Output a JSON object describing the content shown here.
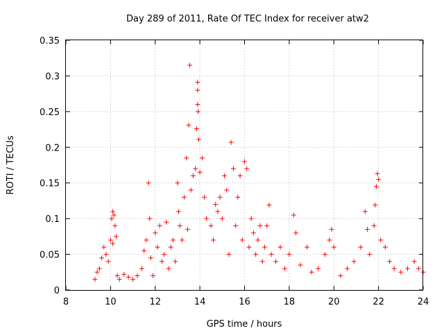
{
  "chart_data": {
    "type": "scatter",
    "title": "Day 289 of 2011, Rate Of TEC Index for receiver atw2",
    "xlabel": "GPS time / hours",
    "ylabel": "ROTI / TECUs",
    "xlim": [
      8,
      24
    ],
    "ylim": [
      0,
      0.35
    ],
    "xticks": [
      "8",
      "10",
      "12",
      "14",
      "16",
      "18",
      "20",
      "22",
      "24"
    ],
    "yticks": [
      "0",
      "0.05",
      "0.1",
      "0.15",
      "0.2",
      "0.25",
      "0.3",
      "0.35"
    ],
    "grid": true,
    "marker": "+",
    "color": "#ff0000",
    "series": [
      {
        "name": "ROTI",
        "points": [
          [
            9.3,
            0.015
          ],
          [
            9.4,
            0.025
          ],
          [
            9.5,
            0.03
          ],
          [
            9.6,
            0.045
          ],
          [
            9.7,
            0.06
          ],
          [
            9.8,
            0.05
          ],
          [
            9.9,
            0.04
          ],
          [
            10.0,
            0.07
          ],
          [
            10.05,
            0.1
          ],
          [
            10.1,
            0.11
          ],
          [
            10.15,
            0.105
          ],
          [
            10.2,
            0.09
          ],
          [
            10.25,
            0.075
          ],
          [
            10.1,
            0.065
          ],
          [
            10.3,
            0.02
          ],
          [
            10.4,
            0.015
          ],
          [
            10.6,
            0.022
          ],
          [
            10.8,
            0.018
          ],
          [
            11.0,
            0.015
          ],
          [
            11.2,
            0.02
          ],
          [
            11.4,
            0.03
          ],
          [
            11.5,
            0.055
          ],
          [
            11.6,
            0.07
          ],
          [
            11.7,
            0.15
          ],
          [
            11.75,
            0.1
          ],
          [
            11.8,
            0.045
          ],
          [
            11.9,
            0.02
          ],
          [
            12.0,
            0.08
          ],
          [
            12.1,
            0.06
          ],
          [
            12.2,
            0.09
          ],
          [
            12.3,
            0.04
          ],
          [
            12.4,
            0.05
          ],
          [
            12.5,
            0.095
          ],
          [
            12.6,
            0.03
          ],
          [
            12.7,
            0.06
          ],
          [
            12.8,
            0.07
          ],
          [
            12.9,
            0.04
          ],
          [
            13.0,
            0.15
          ],
          [
            13.05,
            0.11
          ],
          [
            13.1,
            0.09
          ],
          [
            13.2,
            0.07
          ],
          [
            13.3,
            0.13
          ],
          [
            13.4,
            0.185
          ],
          [
            13.45,
            0.085
          ],
          [
            13.5,
            0.231
          ],
          [
            13.55,
            0.315
          ],
          [
            13.6,
            0.14
          ],
          [
            13.7,
            0.16
          ],
          [
            13.8,
            0.17
          ],
          [
            13.85,
            0.226
          ],
          [
            13.9,
            0.291
          ],
          [
            13.9,
            0.28
          ],
          [
            13.9,
            0.26
          ],
          [
            13.92,
            0.25
          ],
          [
            13.95,
            0.211
          ],
          [
            14.0,
            0.165
          ],
          [
            14.1,
            0.185
          ],
          [
            14.2,
            0.13
          ],
          [
            14.3,
            0.1
          ],
          [
            14.5,
            0.09
          ],
          [
            14.6,
            0.07
          ],
          [
            14.7,
            0.12
          ],
          [
            14.8,
            0.11
          ],
          [
            14.9,
            0.13
          ],
          [
            15.0,
            0.1
          ],
          [
            15.1,
            0.16
          ],
          [
            15.2,
            0.14
          ],
          [
            15.3,
            0.05
          ],
          [
            15.4,
            0.207
          ],
          [
            15.5,
            0.17
          ],
          [
            15.6,
            0.09
          ],
          [
            15.7,
            0.13
          ],
          [
            15.8,
            0.16
          ],
          [
            15.9,
            0.07
          ],
          [
            16.0,
            0.18
          ],
          [
            16.1,
            0.17
          ],
          [
            16.2,
            0.06
          ],
          [
            16.3,
            0.1
          ],
          [
            16.4,
            0.08
          ],
          [
            16.5,
            0.05
          ],
          [
            16.6,
            0.07
          ],
          [
            16.7,
            0.09
          ],
          [
            16.8,
            0.04
          ],
          [
            16.9,
            0.06
          ],
          [
            17.0,
            0.09
          ],
          [
            17.1,
            0.119
          ],
          [
            17.2,
            0.05
          ],
          [
            17.4,
            0.04
          ],
          [
            17.6,
            0.06
          ],
          [
            17.8,
            0.03
          ],
          [
            18.0,
            0.05
          ],
          [
            18.2,
            0.105
          ],
          [
            18.3,
            0.08
          ],
          [
            18.5,
            0.035
          ],
          [
            18.8,
            0.06
          ],
          [
            19.0,
            0.025
          ],
          [
            19.3,
            0.03
          ],
          [
            19.6,
            0.05
          ],
          [
            19.8,
            0.07
          ],
          [
            19.9,
            0.085
          ],
          [
            20.0,
            0.06
          ],
          [
            20.3,
            0.02
          ],
          [
            20.6,
            0.03
          ],
          [
            20.9,
            0.04
          ],
          [
            21.2,
            0.06
          ],
          [
            21.4,
            0.11
          ],
          [
            21.5,
            0.085
          ],
          [
            21.6,
            0.05
          ],
          [
            21.8,
            0.09
          ],
          [
            21.85,
            0.119
          ],
          [
            21.9,
            0.145
          ],
          [
            21.95,
            0.163
          ],
          [
            22.0,
            0.155
          ],
          [
            22.1,
            0.07
          ],
          [
            22.3,
            0.06
          ],
          [
            22.5,
            0.04
          ],
          [
            22.7,
            0.03
          ],
          [
            23.0,
            0.025
          ],
          [
            23.3,
            0.03
          ],
          [
            23.6,
            0.04
          ],
          [
            23.8,
            0.03
          ],
          [
            24.0,
            0.025
          ]
        ]
      }
    ]
  }
}
